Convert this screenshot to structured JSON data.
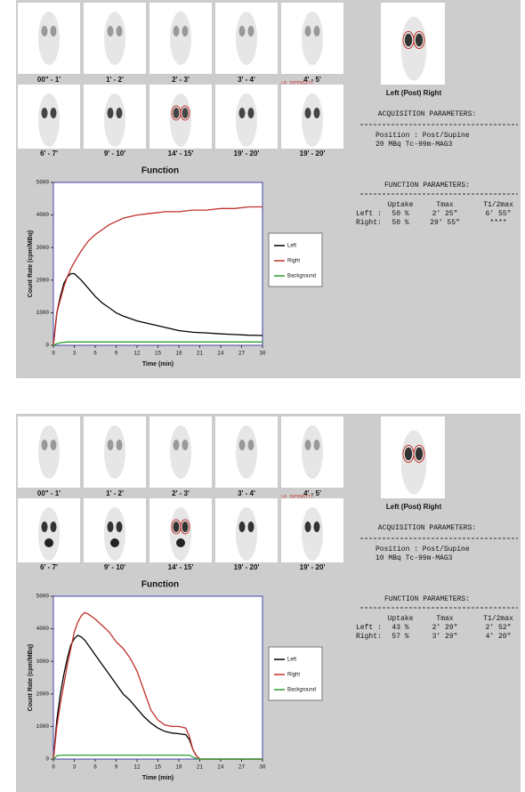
{
  "panels": [
    {
      "thumbnails": [
        "00\" - 1'",
        "1' - 2'",
        "2' - 3'",
        "3' - 4'",
        "4' - 5'",
        "6' - 7'",
        "9' - 10'",
        "14' - 15'",
        "19' - 20'",
        "19' - 20'"
      ],
      "lo_intensity": "LO INTENSITY",
      "image_label": "Left (Post) Right",
      "acquisition": {
        "title": "ACQUISITION PARAMETERS:",
        "lines": [
          "Position : Post/Supine",
          "20 MBq Tc-99m-MAG3"
        ]
      },
      "function_params": {
        "title": "FUNCTION PARAMETERS:",
        "headers": [
          "Uptake",
          "Tmax",
          "T1/2max"
        ],
        "rows": [
          [
            "Left :",
            "50 %",
            "2' 25\"",
            "6' 55\""
          ],
          [
            "Right:",
            "50 %",
            "29' 55\"",
            "****"
          ]
        ]
      }
    },
    {
      "thumbnails": [
        "00\" - 1'",
        "1' - 2'",
        "2' - 3'",
        "3' - 4'",
        "4' - 5'",
        "6' - 7'",
        "9' - 10'",
        "14' - 15'",
        "19' - 20'",
        "19' - 20'"
      ],
      "lo_intensity": "LO INTENSITY",
      "image_label": "Left (Post) Right",
      "acquisition": {
        "title": "ACQUISITION PARAMETERS:",
        "lines": [
          "Position : Post/Supine",
          "10 MBq Tc-99m-MAG3"
        ]
      },
      "function_params": {
        "title": "FUNCTION PARAMETERS:",
        "headers": [
          "Uptake",
          "Tmax",
          "T1/2max"
        ],
        "rows": [
          [
            "Left :",
            "43 %",
            "2' 29\"",
            "2' 52\""
          ],
          [
            "Right:",
            "57 %",
            "3' 29\"",
            "4' 20\""
          ]
        ]
      }
    }
  ],
  "chart_data": [
    {
      "type": "line",
      "title": "Function",
      "x_label": "Time (min)",
      "y_label": "Count Rate (cpm/MBq)",
      "x": [
        0,
        0.5,
        1,
        1.5,
        2,
        2.5,
        3,
        4,
        5,
        6,
        7,
        8,
        9,
        10,
        12,
        14,
        16,
        18,
        20,
        22,
        24,
        26,
        28,
        30
      ],
      "series": [
        {
          "name": "Left",
          "color": "#000000",
          "values": [
            0,
            1000,
            1500,
            1900,
            2100,
            2200,
            2200,
            2000,
            1750,
            1500,
            1300,
            1150,
            1000,
            900,
            750,
            650,
            550,
            450,
            400,
            380,
            350,
            330,
            310,
            300
          ]
        },
        {
          "name": "Right",
          "color": "#c0302a",
          "values": [
            0,
            1000,
            1400,
            1800,
            2100,
            2350,
            2550,
            2900,
            3200,
            3400,
            3550,
            3700,
            3800,
            3900,
            4000,
            4050,
            4100,
            4100,
            4150,
            4150,
            4200,
            4200,
            4250,
            4250
          ]
        },
        {
          "name": "Background",
          "color": "#2ca02c",
          "values": [
            0,
            50,
            80,
            90,
            100,
            100,
            100,
            100,
            100,
            100,
            100,
            100,
            100,
            100,
            100,
            100,
            100,
            100,
            100,
            100,
            100,
            100,
            100,
            100
          ]
        }
      ],
      "xlim": [
        0,
        30
      ],
      "xticks": [
        0,
        3,
        6,
        9,
        12,
        15,
        18,
        21,
        24,
        27,
        30
      ],
      "ylim": [
        0,
        5000
      ],
      "yticks": [
        0,
        1000,
        2000,
        3000,
        4000,
        5000
      ],
      "legend": "right"
    },
    {
      "type": "line",
      "title": "Function",
      "x_label": "Time (min)",
      "y_label": "Count Rate (cpm/MBq)",
      "x": [
        0,
        0.5,
        1,
        1.5,
        2,
        2.5,
        3,
        3.5,
        4,
        4.5,
        5,
        6,
        7,
        8,
        9,
        10,
        11,
        12,
        13,
        14,
        15,
        16,
        17,
        18,
        19,
        19.5,
        20,
        20.5,
        21,
        22,
        24,
        26,
        28,
        30
      ],
      "series": [
        {
          "name": "Left",
          "color": "#000000",
          "values": [
            0,
            1200,
            2000,
            2600,
            3100,
            3500,
            3700,
            3800,
            3750,
            3650,
            3500,
            3200,
            2900,
            2600,
            2300,
            2000,
            1800,
            1550,
            1300,
            1100,
            950,
            850,
            800,
            780,
            750,
            600,
            300,
            100,
            0,
            0,
            0,
            0,
            0,
            0
          ]
        },
        {
          "name": "Right",
          "color": "#c0302a",
          "values": [
            0,
            1000,
            1700,
            2300,
            2900,
            3400,
            3900,
            4200,
            4400,
            4500,
            4450,
            4300,
            4100,
            3900,
            3600,
            3400,
            3100,
            2700,
            2100,
            1500,
            1200,
            1050,
            1000,
            1000,
            950,
            700,
            300,
            100,
            0,
            0,
            0,
            0,
            0,
            0
          ]
        },
        {
          "name": "Background",
          "color": "#2ca02c",
          "values": [
            0,
            100,
            120,
            120,
            120,
            120,
            120,
            120,
            120,
            120,
            120,
            120,
            120,
            120,
            120,
            120,
            120,
            120,
            120,
            120,
            120,
            120,
            120,
            120,
            120,
            120,
            60,
            20,
            0,
            0,
            0,
            0,
            0,
            0
          ]
        }
      ],
      "xlim": [
        0,
        30
      ],
      "xticks": [
        0,
        3,
        6,
        9,
        12,
        15,
        18,
        21,
        24,
        27,
        30
      ],
      "ylim": [
        0,
        5000
      ],
      "yticks": [
        0,
        1000,
        2000,
        3000,
        4000,
        5000
      ],
      "legend": "right"
    }
  ]
}
